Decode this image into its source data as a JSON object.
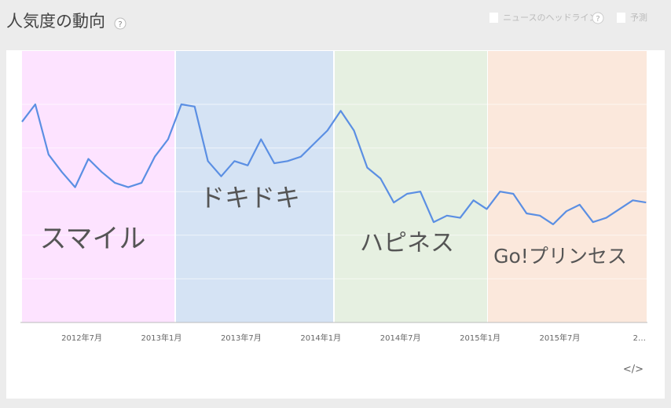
{
  "ui": {
    "help": "?",
    "news_label": "ニュースのヘッドライン",
    "forecast_label": "予測",
    "embed": "</>"
  },
  "chart_data": {
    "type": "line",
    "title": "人気度の動向",
    "categories": [
      null,
      null,
      null,
      null,
      "2012年7月",
      null,
      null,
      null,
      null,
      null,
      "2013年1月",
      null,
      null,
      null,
      null,
      null,
      "2013年7月",
      null,
      null,
      null,
      null,
      null,
      "2014年1月",
      null,
      null,
      null,
      null,
      null,
      "2014年7月",
      null,
      null,
      null,
      null,
      null,
      "2015年1月",
      null,
      null,
      null,
      null,
      null,
      "2015年7月",
      null,
      null,
      null,
      null,
      null,
      "2…",
      null
    ],
    "values": [
      92,
      100,
      77,
      69,
      62,
      75,
      69,
      64,
      62,
      64,
      76,
      84,
      100,
      99,
      74,
      67,
      74,
      72,
      84,
      73,
      74,
      76,
      82,
      88,
      97,
      88,
      71,
      66,
      55,
      59,
      60,
      46,
      49,
      48,
      56,
      52,
      60,
      59,
      50,
      49,
      45,
      51,
      54,
      46,
      48,
      52,
      56,
      55
    ],
    "color": "#5b8fe3",
    "ylim": [
      0,
      100
    ],
    "yticks": [
      0,
      20,
      40,
      60,
      80,
      100
    ],
    "grid": true,
    "regions": [
      {
        "label": "スマイル",
        "color": "#fde3ff"
      },
      {
        "label": "ドキドキ",
        "color": "#d5e3f4"
      },
      {
        "label": "ハピネス",
        "color": "#e6f0e1"
      },
      {
        "label": "Go!プリンセス",
        "color": "#fbe8dc"
      }
    ]
  }
}
